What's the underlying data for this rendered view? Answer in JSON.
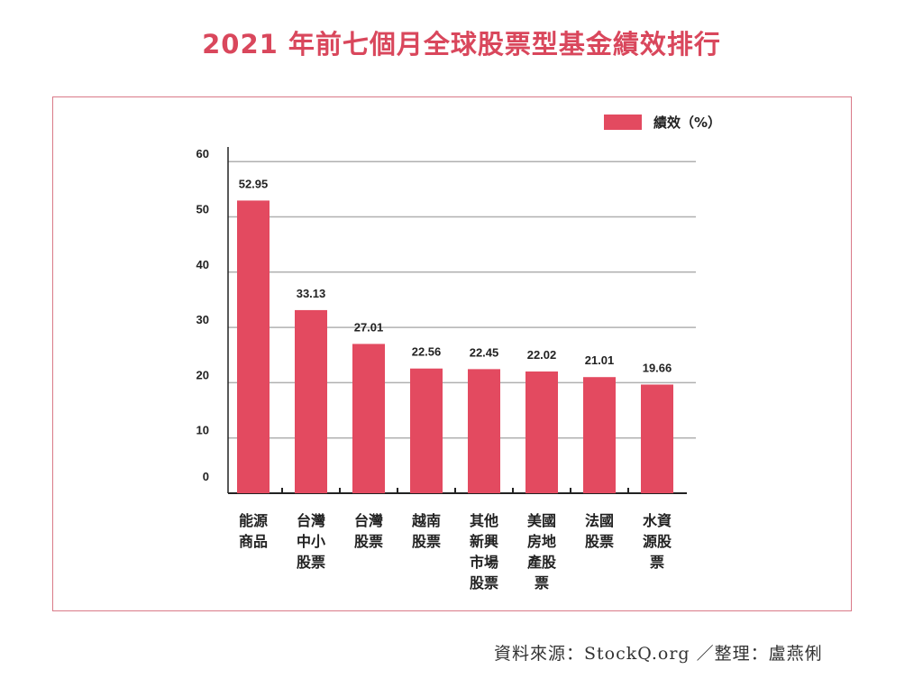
{
  "chart_data": {
    "type": "bar",
    "title": "2021 年前七個月全球股票型基金績效排行",
    "categories": [
      "能源商品",
      "台灣中小股票",
      "台灣股票",
      "越南股票",
      "其他新興市場股票",
      "美國房地產股票",
      "法國股票",
      "水資源股票"
    ],
    "category_lines": [
      [
        "能源",
        "商品"
      ],
      [
        "台灣",
        "中小",
        "股票"
      ],
      [
        "台灣",
        "股票"
      ],
      [
        "越南",
        "股票"
      ],
      [
        "其他",
        "新興",
        "市場",
        "股票"
      ],
      [
        "美國",
        "房地",
        "產股",
        "票"
      ],
      [
        "法國",
        "股票"
      ],
      [
        "水資",
        "源股",
        "票"
      ]
    ],
    "series": [
      {
        "name": "績效（%）",
        "values": [
          52.95,
          33.13,
          27.01,
          22.56,
          22.45,
          22.02,
          21.01,
          19.66
        ],
        "labels": [
          "52.95",
          "33.13",
          "27.01",
          "22.56",
          "22.45",
          "22.02",
          "21.01",
          "19.66"
        ]
      }
    ],
    "yticks": [
      0,
      10,
      20,
      30,
      40,
      50,
      60
    ],
    "ylim": [
      0,
      60
    ],
    "grid": true,
    "legend": "top-right",
    "colors": {
      "bar": "#e34a60",
      "title": "#d9475c",
      "frame": "#d97a88",
      "grid": "#b0b0b0"
    }
  },
  "source": "資料來源：StockQ.org ／整理：盧燕俐"
}
